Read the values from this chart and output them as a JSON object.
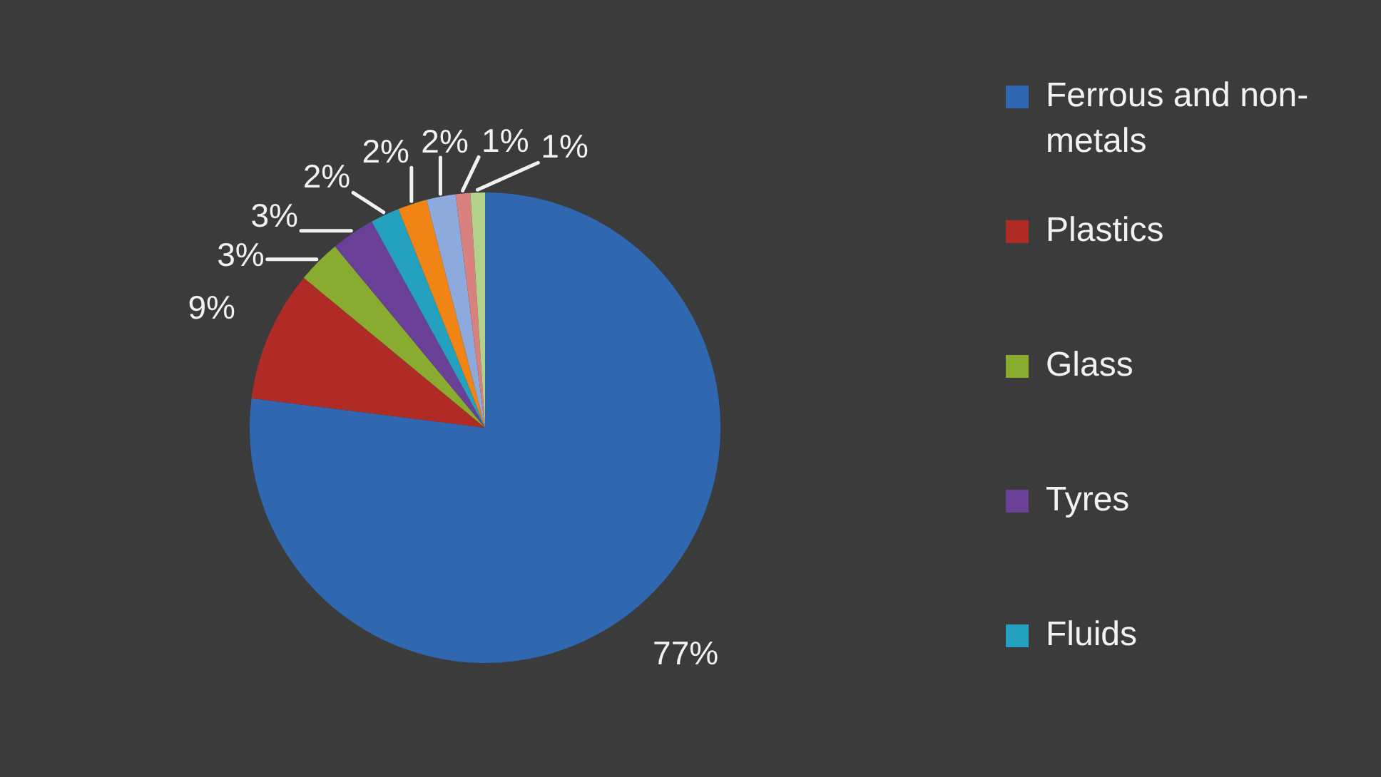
{
  "chart_data": {
    "type": "pie",
    "categories": [
      "Ferrous and non-metals",
      "Plastics",
      "Glass",
      "Tyres",
      "Fluids",
      null,
      null,
      null,
      null
    ],
    "values": [
      77,
      9,
      3,
      3,
      2,
      2,
      2,
      1,
      1
    ],
    "colors": [
      "#2f67b1",
      "#b02a26",
      "#89ab2f",
      "#6a3f98",
      "#24a1bf",
      "#f08414",
      "#8eaadc",
      "#d9817f",
      "#b3d18b"
    ],
    "value_labels": [
      "77%",
      "9%",
      "3%",
      "3%",
      "2%",
      "2%",
      "2%",
      "1%",
      "1%"
    ],
    "legend": "right"
  }
}
